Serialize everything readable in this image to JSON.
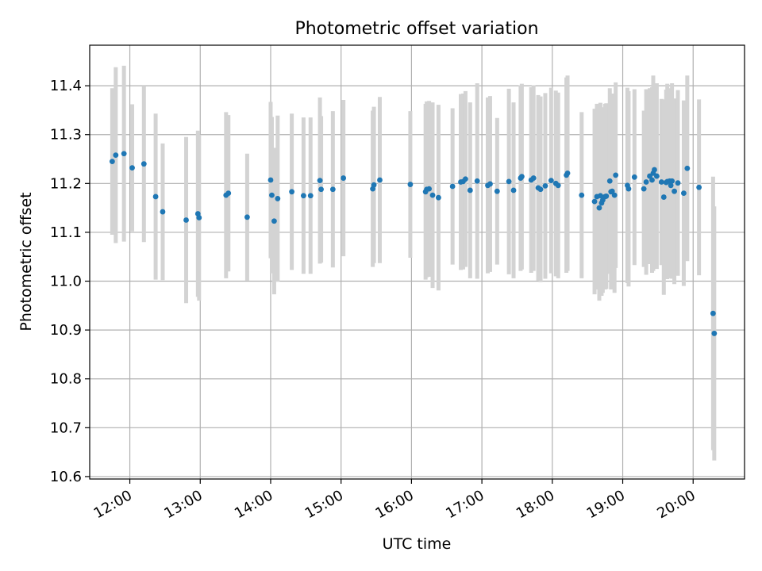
{
  "chart_data": {
    "type": "scatter",
    "title": "Photometric offset variation",
    "xlabel": "UTC time",
    "ylabel": "Photometric offset",
    "grid": true,
    "x_tick_labels": [
      "12:00",
      "13:00",
      "14:00",
      "15:00",
      "16:00",
      "17:00",
      "18:00",
      "19:00",
      "20:00"
    ],
    "x_ticks_hours": [
      12,
      13,
      14,
      15,
      16,
      17,
      18,
      19,
      20
    ],
    "y_tick_labels": [
      "10.6",
      "10.7",
      "10.8",
      "10.9",
      "11.0",
      "11.1",
      "11.2",
      "11.3",
      "11.4"
    ],
    "y_ticks": [
      10.6,
      10.7,
      10.8,
      10.9,
      11.0,
      11.1,
      11.2,
      11.3,
      11.4
    ],
    "xlim_hours": [
      11.43,
      20.73
    ],
    "ylim": [
      10.595,
      11.483
    ],
    "colors": {
      "point": "#1f77b4",
      "errorbar": "#d3d3d3",
      "grid": "#b0b0b0"
    },
    "series": [
      {
        "x": [
          "11:45",
          "11:48",
          "11:55",
          "12:02",
          "12:12",
          "12:22",
          "12:28",
          "12:48",
          "12:58",
          "12:59",
          "13:22",
          "13:24",
          "13:40",
          "14:00",
          "14:01",
          "14:03",
          "14:06",
          "14:18",
          "14:28",
          "14:34",
          "14:42",
          "14:43",
          "14:53",
          "15:02",
          "15:27",
          "15:28",
          "15:33",
          "15:59",
          "16:12",
          "16:13",
          "16:15",
          "16:18",
          "16:23",
          "16:35",
          "16:42",
          "16:44",
          "16:46",
          "16:50",
          "16:56",
          "17:05",
          "17:07",
          "17:13",
          "17:23",
          "17:27",
          "17:33",
          "17:34",
          "17:42",
          "17:44",
          "17:48",
          "17:50",
          "17:54",
          "17:59",
          "18:03",
          "18:05",
          "18:12",
          "18:13",
          "18:25",
          "18:36",
          "18:38",
          "18:40",
          "18:41",
          "18:42",
          "18:43",
          "18:45",
          "18:46",
          "18:49",
          "18:50",
          "18:51",
          "18:53",
          "18:54",
          "19:04",
          "19:05",
          "19:10",
          "19:18",
          "19:20",
          "19:23",
          "19:25",
          "19:26",
          "19:27",
          "19:29",
          "19:33",
          "19:35",
          "19:37",
          "19:38",
          "19:40",
          "19:41",
          "19:42",
          "19:44",
          "19:47",
          "19:52",
          "19:55",
          "20:05",
          "20:17",
          "20:18"
        ],
        "y": [
          11.245,
          11.258,
          11.261,
          11.232,
          11.24,
          11.173,
          11.142,
          11.125,
          11.138,
          11.13,
          11.176,
          11.18,
          11.131,
          11.207,
          11.176,
          11.123,
          11.169,
          11.183,
          11.175,
          11.175,
          11.206,
          11.188,
          11.188,
          11.211,
          11.189,
          11.197,
          11.207,
          11.198,
          11.183,
          11.188,
          11.189,
          11.176,
          11.171,
          11.194,
          11.203,
          11.204,
          11.209,
          11.186,
          11.205,
          11.196,
          11.199,
          11.184,
          11.204,
          11.186,
          11.211,
          11.214,
          11.207,
          11.211,
          11.191,
          11.188,
          11.195,
          11.206,
          11.2,
          11.196,
          11.217,
          11.221,
          11.176,
          11.163,
          11.173,
          11.15,
          11.175,
          11.16,
          11.166,
          11.173,
          11.174,
          11.205,
          11.183,
          11.184,
          11.176,
          11.217,
          11.196,
          11.189,
          11.213,
          11.189,
          11.203,
          11.215,
          11.207,
          11.221,
          11.228,
          11.215,
          11.203,
          11.172,
          11.202,
          11.204,
          11.205,
          11.196,
          11.205,
          11.184,
          11.201,
          11.18,
          11.231,
          11.192,
          10.934,
          10.893
        ],
        "err": [
          0.15,
          0.18,
          0.18,
          0.13,
          0.16,
          0.17,
          0.14,
          0.17,
          0.17,
          0.17,
          0.17,
          0.16,
          0.13,
          0.16,
          0.16,
          0.15,
          0.17,
          0.16,
          0.16,
          0.16,
          0.17,
          0.15,
          0.16,
          0.16,
          0.16,
          0.16,
          0.17,
          0.15,
          0.18,
          0.18,
          0.18,
          0.19,
          0.19,
          0.16,
          0.18,
          0.18,
          0.18,
          0.18,
          0.2,
          0.18,
          0.18,
          0.15,
          0.19,
          0.18,
          0.19,
          0.19,
          0.19,
          0.19,
          0.19,
          0.19,
          0.19,
          0.19,
          0.19,
          0.19,
          0.2,
          0.2,
          0.17,
          0.19,
          0.19,
          0.19,
          0.19,
          0.19,
          0.19,
          0.19,
          0.19,
          0.19,
          0.2,
          0.2,
          0.2,
          0.19,
          0.2,
          0.2,
          0.18,
          0.16,
          0.19,
          0.18,
          0.19,
          0.2,
          0.17,
          0.19,
          0.17,
          0.2,
          0.19,
          0.2,
          0.19,
          0.19,
          0.2,
          0.19,
          0.19,
          0.19,
          0.19,
          0.18,
          0.28,
          0.26
        ]
      }
    ]
  }
}
